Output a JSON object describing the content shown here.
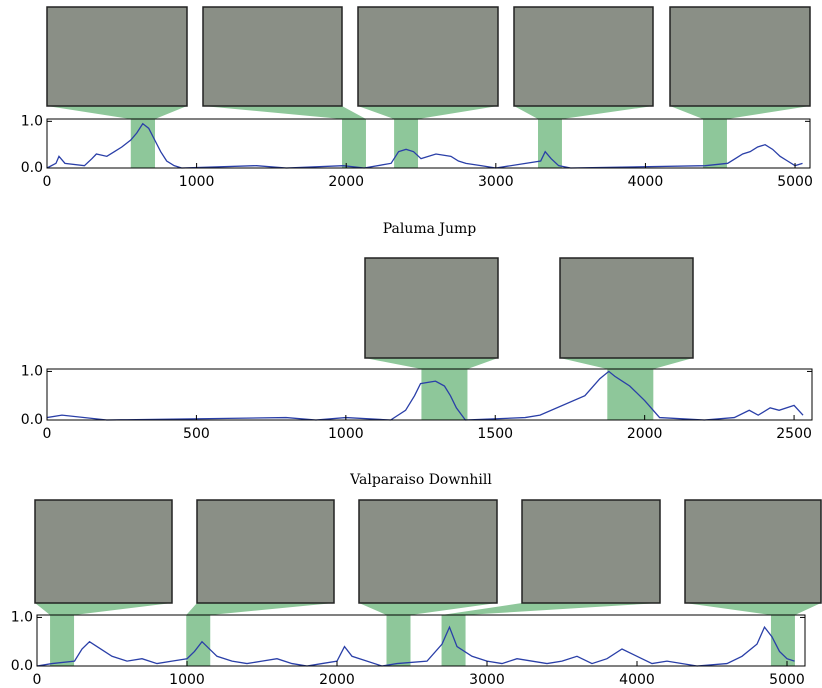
{
  "chart_data": [
    {
      "type": "line",
      "x": [
        0,
        60,
        80,
        120,
        250,
        300,
        330,
        400,
        450,
        500,
        560,
        600,
        640,
        680,
        720,
        760,
        800,
        850,
        900,
        1400,
        1600,
        1980,
        2120,
        2300,
        2350,
        2400,
        2450,
        2500,
        2600,
        2700,
        2750,
        2800,
        2900,
        3000,
        3300,
        3330,
        3370,
        3420,
        3500,
        4400,
        4550,
        4600,
        4650,
        4700,
        4750,
        4800,
        4850,
        4900,
        4950,
        5000,
        5050
      ],
      "values": [
        0,
        0.1,
        0.25,
        0.1,
        0.05,
        0.2,
        0.3,
        0.25,
        0.35,
        0.45,
        0.6,
        0.75,
        0.95,
        0.85,
        0.6,
        0.35,
        0.15,
        0.05,
        0,
        0.05,
        0,
        0.05,
        0,
        0.1,
        0.35,
        0.4,
        0.35,
        0.2,
        0.3,
        0.25,
        0.15,
        0.1,
        0.05,
        0,
        0.15,
        0.35,
        0.2,
        0.05,
        0,
        0.05,
        0.1,
        0.2,
        0.3,
        0.35,
        0.45,
        0.5,
        0.4,
        0.25,
        0.15,
        0.05,
        0.1
      ],
      "color": "#2a3fa8",
      "highlight_color": "#8ec79a",
      "highlight_spans": [
        [
          560,
          722
        ],
        [
          1972,
          2132
        ],
        [
          2320,
          2480
        ],
        [
          3282,
          3442
        ],
        [
          4385,
          4545
        ]
      ],
      "xlim": [
        0,
        5100
      ],
      "xticks": [
        0,
        1000,
        2000,
        3000,
        4000,
        5000
      ],
      "ylim": [
        0,
        1.05
      ],
      "yticks": [
        {
          "value": 0,
          "label": "0.0"
        },
        {
          "value": 1,
          "label": "1.0"
        }
      ]
    },
    {
      "type": "line",
      "title": "Paluma Jump",
      "x": [
        0,
        50,
        200,
        800,
        900,
        1000,
        1150,
        1200,
        1230,
        1250,
        1300,
        1330,
        1350,
        1370,
        1400,
        1600,
        1650,
        1800,
        1850,
        1880,
        1900,
        1950,
        2000,
        2050,
        2200,
        2300,
        2350,
        2380,
        2420,
        2450,
        2500,
        2530
      ],
      "values": [
        0.05,
        0.1,
        0,
        0.05,
        0,
        0.05,
        0,
        0.2,
        0.5,
        0.75,
        0.8,
        0.7,
        0.5,
        0.25,
        0,
        0.05,
        0.1,
        0.5,
        0.85,
        1.0,
        0.9,
        0.7,
        0.4,
        0.05,
        0,
        0.05,
        0.2,
        0.1,
        0.25,
        0.2,
        0.3,
        0.1
      ],
      "color": "#2a3fa8",
      "highlight_color": "#8ec79a",
      "highlight_spans": [
        [
          1253,
          1407
        ],
        [
          1875,
          2029
        ]
      ],
      "xlim": [
        0,
        2560
      ],
      "xticks": [
        0,
        500,
        1000,
        1500,
        2000,
        2500
      ],
      "ylim": [
        0,
        1.05
      ],
      "yticks": [
        {
          "value": 0,
          "label": "0.0"
        },
        {
          "value": 1,
          "label": "1.0"
        }
      ]
    },
    {
      "type": "line",
      "title": "Valparaiso Downhill",
      "x": [
        0,
        100,
        250,
        300,
        350,
        400,
        500,
        600,
        700,
        800,
        900,
        1000,
        1050,
        1100,
        1200,
        1300,
        1400,
        1500,
        1600,
        1700,
        1800,
        1900,
        2000,
        2050,
        2100,
        2300,
        2400,
        2600,
        2700,
        2750,
        2800,
        2900,
        3000,
        3100,
        3200,
        3400,
        3500,
        3600,
        3700,
        3800,
        3900,
        4000,
        4100,
        4200,
        4400,
        4600,
        4700,
        4800,
        4850,
        4900,
        4950,
        5000,
        5050
      ],
      "values": [
        0,
        0.05,
        0.1,
        0.35,
        0.5,
        0.4,
        0.2,
        0.1,
        0.15,
        0.05,
        0.1,
        0.15,
        0.3,
        0.5,
        0.2,
        0.1,
        0.05,
        0.1,
        0.15,
        0.05,
        0,
        0.05,
        0.1,
        0.4,
        0.2,
        0,
        0.05,
        0.1,
        0.45,
        0.8,
        0.4,
        0.2,
        0.1,
        0.05,
        0.15,
        0.05,
        0.1,
        0.2,
        0.05,
        0.15,
        0.35,
        0.2,
        0.05,
        0.1,
        0,
        0.05,
        0.2,
        0.45,
        0.8,
        0.6,
        0.3,
        0.15,
        0.1
      ],
      "color": "#2a3fa8",
      "highlight_color": "#8ec79a",
      "highlight_spans": [
        [
          87,
          247
        ],
        [
          995,
          1155
        ],
        [
          2330,
          2490
        ],
        [
          2697,
          2857
        ],
        [
          4893,
          5053
        ]
      ],
      "xlim": [
        0,
        5120
      ],
      "xticks": [
        0,
        1000,
        2000,
        3000,
        4000,
        5000
      ],
      "ylim": [
        0,
        1.05
      ],
      "yticks": [
        {
          "value": 0,
          "label": "0.0"
        },
        {
          "value": 1,
          "label": "1.0"
        }
      ]
    }
  ]
}
